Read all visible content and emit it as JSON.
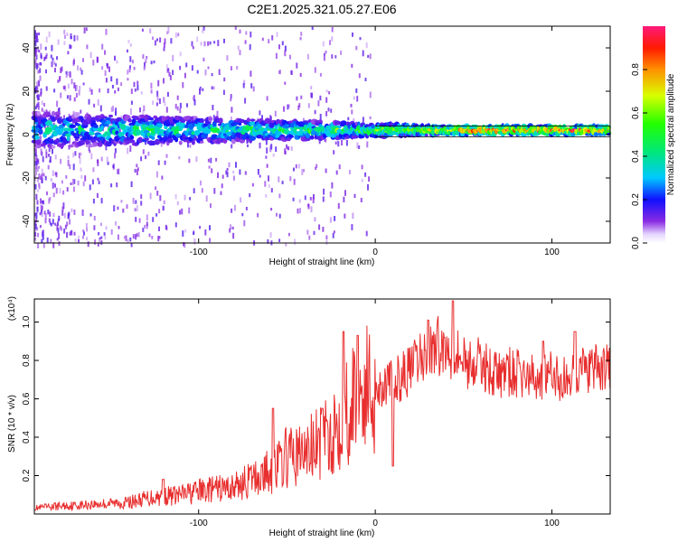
{
  "chart_data": [
    {
      "type": "heatmap",
      "title": "C2E1.2025.321.05.27.E06",
      "xlabel": "Height of straight line (km)",
      "ylabel": "Frequency (Hz)",
      "xlim": [
        -193,
        133
      ],
      "ylim": [
        -50,
        50
      ],
      "xticks": [
        -100,
        0,
        100
      ],
      "yticks": [
        -40,
        -20,
        0,
        20,
        40
      ],
      "colorbar": {
        "label": "Normalized spectral amplitude",
        "ticks": [
          0.0,
          0.2,
          0.4,
          0.6,
          0.8
        ],
        "range": [
          0,
          1
        ]
      },
      "ridge": {
        "center_freq_hz": 2,
        "halfwidth_hz_at_low_height": 8,
        "halfwidth_hz_at_high_height": 2,
        "max_amplitude_from_km": 60
      },
      "reference_lines_hz": [
        -1,
        4
      ]
    },
    {
      "type": "line",
      "xlabel": "Height of straight line (km)",
      "ylabel": "SNR (10 * v/v)",
      "y_multiplier": "(x10⁴)",
      "xlim": [
        -193,
        133
      ],
      "ylim": [
        0,
        1.12
      ],
      "xticks": [
        -100,
        0,
        100
      ],
      "yticks": [
        0.2,
        0.4,
        0.6,
        0.8,
        1.0
      ],
      "series": [
        {
          "name": "SNR",
          "color": "#e82e2e",
          "x": [
            -193,
            -180,
            -160,
            -140,
            -125,
            -110,
            -100,
            -90,
            -80,
            -70,
            -60,
            -55,
            -50,
            -45,
            -40,
            -35,
            -30,
            -25,
            -20,
            -15,
            -10,
            -5,
            0,
            5,
            10,
            15,
            20,
            25,
            30,
            35,
            40,
            45,
            50,
            55,
            60,
            65,
            70,
            75,
            80,
            85,
            90,
            95,
            100,
            105,
            110,
            115,
            120,
            125,
            133
          ],
          "y": [
            0.03,
            0.04,
            0.05,
            0.06,
            0.09,
            0.1,
            0.12,
            0.13,
            0.14,
            0.18,
            0.22,
            0.25,
            0.3,
            0.3,
            0.32,
            0.35,
            0.36,
            0.42,
            0.5,
            0.55,
            0.62,
            0.65,
            0.64,
            0.68,
            0.68,
            0.72,
            0.75,
            0.8,
            0.84,
            0.88,
            0.85,
            0.86,
            0.8,
            0.78,
            0.78,
            0.75,
            0.72,
            0.74,
            0.73,
            0.72,
            0.7,
            0.72,
            0.72,
            0.7,
            0.7,
            0.76,
            0.74,
            0.75,
            0.76
          ],
          "peaks": [
            {
              "x": -120,
              "y": 0.18
            },
            {
              "x": -58,
              "y": 0.55
            },
            {
              "x": -30,
              "y": 0.55
            },
            {
              "x": -18,
              "y": 0.95
            },
            {
              "x": -10,
              "y": 0.93
            },
            {
              "x": 10,
              "y": 0.25
            },
            {
              "x": 30,
              "y": 1.01
            },
            {
              "x": 44,
              "y": 1.11
            },
            {
              "x": 95,
              "y": 0.9
            },
            {
              "x": 113,
              "y": 0.95
            }
          ]
        }
      ]
    }
  ]
}
